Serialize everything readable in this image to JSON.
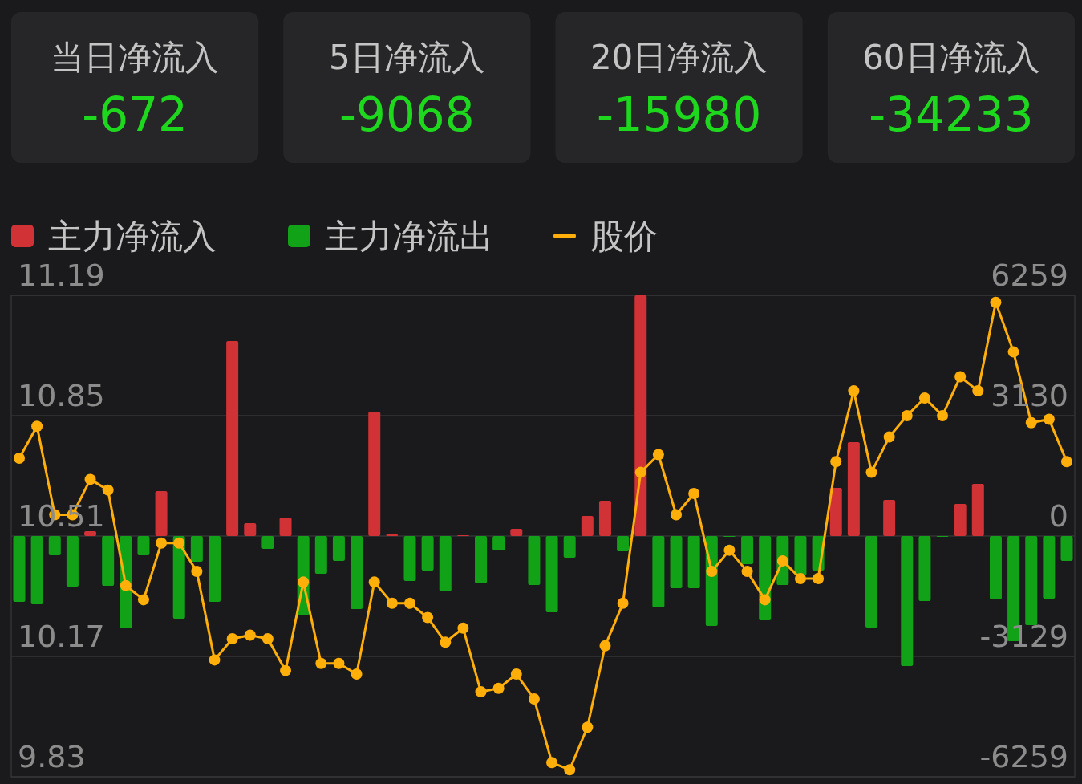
{
  "chart_data": [
    {
      "type": "other",
      "categories": [
        "当日净流入",
        "5日净流入",
        "20日净流入",
        "60日净流入"
      ],
      "annotations": [
        "-672",
        "-9068",
        "-15980",
        "-34233"
      ]
    },
    {
      "type": "bar",
      "categories": [
        null,
        null,
        null,
        null,
        null,
        null,
        null,
        null,
        null,
        null,
        null,
        null,
        null,
        null,
        null,
        null,
        null,
        null,
        null,
        null,
        null,
        null,
        null,
        null,
        null,
        null,
        null,
        null,
        null,
        null,
        null,
        null,
        null,
        null,
        null,
        null,
        null,
        null,
        null,
        null,
        null,
        null,
        null,
        null,
        null,
        null,
        null,
        null,
        null,
        null,
        null,
        null,
        null,
        null,
        null,
        null,
        null,
        null,
        null,
        null
      ],
      "series": [
        {
          "name": "主力净流入",
          "type": "bar",
          "axis": "y2",
          "color": "#d03235",
          "values": [
            null,
            null,
            null,
            null,
            125,
            null,
            null,
            null,
            1168,
            null,
            null,
            null,
            5069,
            334,
            null,
            480,
            null,
            null,
            null,
            null,
            3233,
            42,
            null,
            null,
            null,
            20,
            null,
            null,
            188,
            null,
            null,
            null,
            522,
            918,
            null,
            6259,
            null,
            null,
            null,
            null,
            null,
            null,
            null,
            null,
            null,
            null,
            1252,
            2441,
            null,
            939,
            null,
            null,
            null,
            834,
            1356,
            null,
            null,
            null,
            null,
            null
          ]
        },
        {
          "name": "主力净流出",
          "type": "bar",
          "axis": "y2",
          "color": "#12a217",
          "values": [
            -1711,
            -1773,
            -500,
            -1314,
            null,
            -1293,
            -2399,
            -500,
            null,
            -2149,
            -668,
            -1711,
            null,
            null,
            -334,
            null,
            -2044,
            -980,
            -647,
            -1898,
            null,
            null,
            -1168,
            -897,
            -1439,
            null,
            -1231,
            -375,
            null,
            -1272,
            -1982,
            -563,
            null,
            null,
            -396,
            null,
            -1857,
            -1356,
            -1356,
            -2336,
            -20,
            -730,
            -2190,
            -1272,
            -1022,
            -897,
            null,
            null,
            -2378,
            null,
            -3380,
            -1690,
            -20,
            null,
            null,
            -1648,
            -2733,
            -2315,
            -1627,
            -647
          ]
        },
        {
          "name": "股价",
          "type": "line",
          "color": "#ffae0a",
          "values": [
            10.73,
            10.82,
            10.57,
            10.57,
            10.67,
            10.64,
            10.37,
            10.33,
            10.49,
            10.49,
            10.41,
            10.16,
            10.22,
            10.23,
            10.22,
            10.13,
            10.38,
            10.15,
            10.15,
            10.12,
            10.38,
            10.32,
            10.32,
            10.28,
            10.21,
            10.25,
            10.07,
            10.08,
            10.12,
            10.05,
            9.87,
            9.85,
            9.97,
            10.2,
            10.32,
            10.69,
            10.74,
            10.57,
            10.63,
            10.41,
            10.47,
            10.41,
            10.33,
            10.44,
            10.39,
            10.39,
            10.72,
            10.92,
            10.69,
            10.79,
            10.85,
            10.9,
            10.85,
            10.96,
            10.92,
            11.17,
            11.03,
            10.83,
            10.84,
            10.72
          ]
        }
      ],
      "ylim": [
        9.83,
        11.19
      ],
      "yticks": [
        9.83,
        10.17,
        10.51,
        10.85,
        11.19
      ],
      "y2lim": [
        -6259,
        6259
      ],
      "y2ticks": [
        -6259,
        -3129,
        0,
        3130,
        6259
      ],
      "grid": "y",
      "legend": "top left",
      "marker": "circle",
      "line_style": "solid"
    }
  ]
}
